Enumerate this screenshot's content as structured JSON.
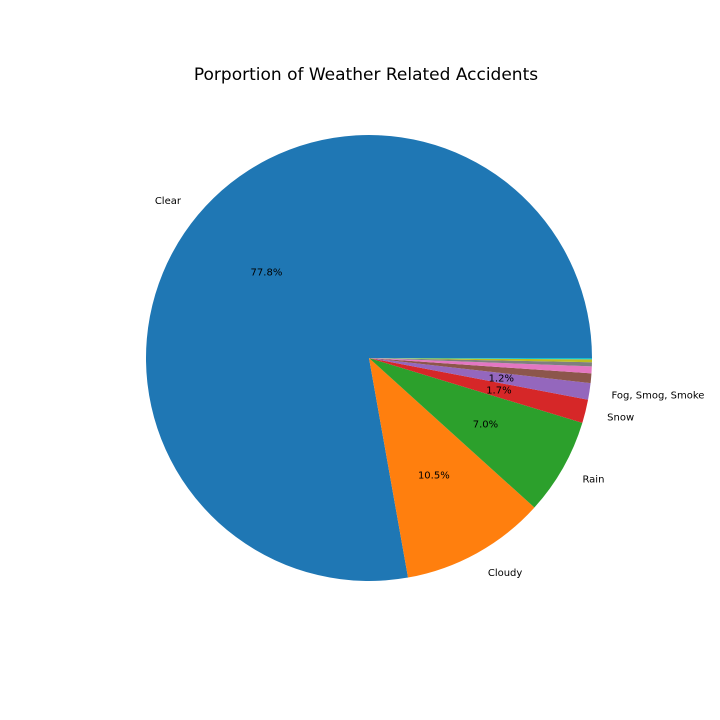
{
  "chart_data": {
    "type": "pie",
    "title": "Porportion of Weather Related Accidents",
    "start_angle_deg": 0,
    "direction": "counterclockwise",
    "legend": "none",
    "slices": [
      {
        "label": "Clear",
        "value": 77.8,
        "pct_label": "77.8%",
        "color": "#1f77b4"
      },
      {
        "label": "Cloudy",
        "value": 10.5,
        "pct_label": "10.5%",
        "color": "#ff7f0e"
      },
      {
        "label": "Rain",
        "value": 7.0,
        "pct_label": "7.0%",
        "color": "#2ca02c"
      },
      {
        "label": "Snow",
        "value": 1.7,
        "pct_label": "1.7%",
        "color": "#d62728"
      },
      {
        "label": "Fog, Smog, Smoke",
        "value": 1.2,
        "pct_label": "1.2%",
        "color": "#9467bd"
      },
      {
        "label": "",
        "value": 0.7,
        "pct_label": "",
        "color": "#8c564b"
      },
      {
        "label": "",
        "value": 0.5,
        "pct_label": "",
        "color": "#e377c2"
      },
      {
        "label": "",
        "value": 0.3,
        "pct_label": "",
        "color": "#7f7f7f"
      },
      {
        "label": "",
        "value": 0.2,
        "pct_label": "",
        "color": "#bcbd22"
      },
      {
        "label": "",
        "value": 0.1,
        "pct_label": "",
        "color": "#17becf"
      }
    ]
  }
}
